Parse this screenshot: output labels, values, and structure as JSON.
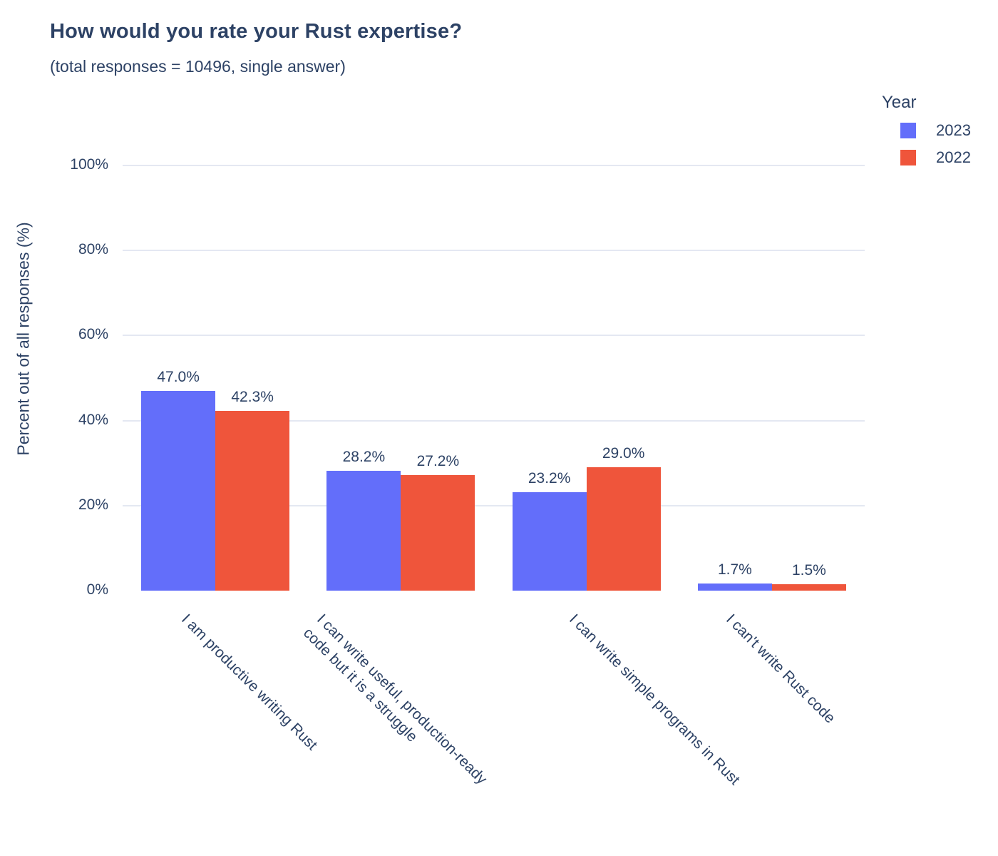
{
  "header": {
    "title": "How would you rate your Rust expertise?",
    "subtitle": "(total responses = 10496, single answer)"
  },
  "chart_data": {
    "type": "bar",
    "title": "How would you rate your Rust expertise?",
    "subtitle": "(total responses = 10496, single answer)",
    "categories": [
      "I am productive writing Rust",
      "I can write useful, production-ready\ncode but it is a struggle",
      "I can write simple programs in Rust",
      "I can't write Rust code"
    ],
    "series": [
      {
        "name": "2023",
        "color": "#636EFA",
        "values": [
          47.0,
          28.2,
          23.2,
          1.7
        ],
        "labels": [
          "47.0%",
          "28.2%",
          "23.2%",
          "1.7%"
        ]
      },
      {
        "name": "2022",
        "color": "#EF553B",
        "values": [
          42.3,
          27.2,
          29.0,
          1.5
        ],
        "labels": [
          "42.3%",
          "27.2%",
          "29.0%",
          "1.5%"
        ]
      }
    ],
    "xlabel": "",
    "ylabel": "Percent out of all responses (%)",
    "ylim": [
      0,
      100
    ],
    "ytick_values": [
      0,
      20,
      40,
      60,
      80,
      100
    ],
    "ytick_labels": [
      "0%",
      "20%",
      "40%",
      "60%",
      "80%",
      "100%"
    ],
    "grid": true,
    "legend": {
      "title": "Year",
      "position": "top-right",
      "entries": [
        "2023",
        "2022"
      ]
    },
    "colors": {
      "text": "#2d4265",
      "gridline": "#e4e8f2",
      "background": "#ffffff",
      "series_2023": "#636EFA",
      "series_2022": "#EF553B"
    }
  }
}
